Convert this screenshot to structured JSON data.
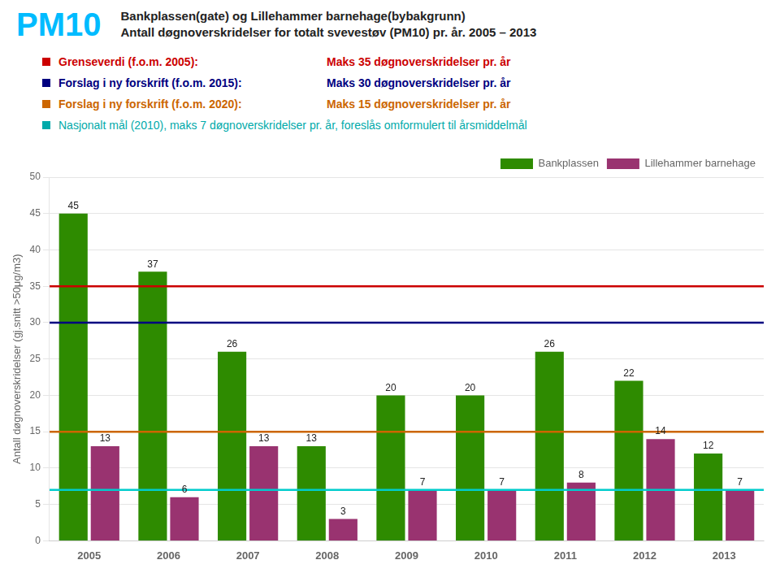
{
  "chart_data": {
    "type": "bar",
    "title": [
      "Bankplassen(gate) og Lillehammer barnehage(bybakgrunn)",
      "Antall døgnoverskridelser for totalt svevestøv (PM10) pr. år.  2005 – 2013"
    ],
    "annotations": [
      {
        "text": "PM10",
        "color": "#00BBFF"
      },
      {
        "text": [
          "Grenseverdi (f.o.m. 2005):",
          "Maks 35 døgnoverskridelser pr. år"
        ],
        "color": "#CC0000"
      },
      {
        "text": [
          "Forslag i ny forskrift (f.o.m. 2015):",
          "Maks 30 døgnoverskridelser pr. år"
        ],
        "color": "#000080"
      },
      {
        "text": [
          "Forslag i ny forskrift (f.o.m. 2020):",
          "Maks 15 døgnoverskridelser pr. år"
        ],
        "color": "#CC6600"
      },
      {
        "text": [
          "Nasjonalt mål (2010), maks 7 døgnoverskridelser pr. år, foreslås omformulert til årsmiddelmål"
        ],
        "color": "#00AAAA"
      }
    ],
    "categories": [
      "2005",
      "2006",
      "2007",
      "2008",
      "2009",
      "2010",
      "2011",
      "2012",
      "2013"
    ],
    "series": [
      {
        "name": "Bankplassen",
        "color": "#2E8B00",
        "values": [
          45,
          37,
          26,
          13,
          20,
          20,
          26,
          22,
          12
        ]
      },
      {
        "name": "Lillehammer barnehage",
        "color": "#993370",
        "values": [
          13,
          6,
          13,
          3,
          7,
          7,
          8,
          14,
          7
        ]
      }
    ],
    "reference_lines": [
      {
        "value": 35,
        "color": "#CC0000"
      },
      {
        "value": 30,
        "color": "#000080"
      },
      {
        "value": 15,
        "color": "#CC6600"
      },
      {
        "value": 7,
        "color": "#00CCCC"
      }
    ],
    "y_label": "Antall døgnoverskridelser (gj.snitt >50μg/m3)",
    "ylim": [
      0,
      50
    ],
    "yticks": [
      0,
      5,
      10,
      15,
      20,
      25,
      30,
      35,
      40,
      45,
      50
    ],
    "grid": true,
    "legend": "upper right",
    "data_labels": true
  }
}
